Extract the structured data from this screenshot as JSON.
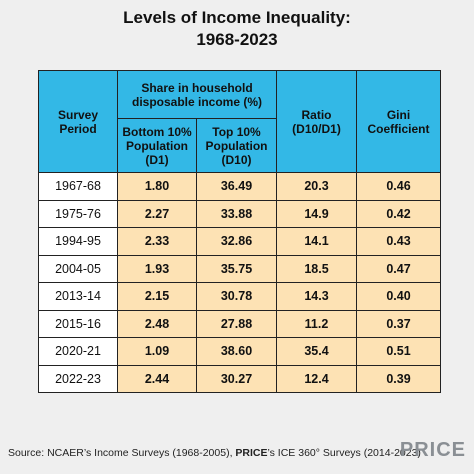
{
  "header": {
    "title": [
      "Levels of Income Inequality:",
      "1968-2023"
    ]
  },
  "table": {
    "headers": {
      "period": "Survey Period",
      "share": "Share in household disposable income (%)",
      "bottom": "Bottom 10% Population (D1)",
      "top": "Top 10% Population (D10)",
      "ratio": "Ratio (D10/D1)",
      "gini": "Gini Coefficient"
    },
    "rows": [
      [
        "1967-68",
        "1.80",
        "36.49",
        "20.3",
        "0.46"
      ],
      [
        "1975-76",
        "2.27",
        "33.88",
        "14.9",
        "0.42"
      ],
      [
        "1994-95",
        "2.33",
        "32.86",
        "14.1",
        "0.43"
      ],
      [
        "2004-05",
        "1.93",
        "35.75",
        "18.5",
        "0.47"
      ],
      [
        "2013-14",
        "2.15",
        "30.78",
        "14.3",
        "0.40"
      ],
      [
        "2015-16",
        "2.48",
        "27.88",
        "11.2",
        "0.37"
      ],
      [
        "2020-21",
        "1.09",
        "38.60",
        "35.4",
        "0.51"
      ],
      [
        "2022-23",
        "2.44",
        "30.27",
        "12.4",
        "0.39"
      ]
    ]
  },
  "footer": {
    "source": [
      "Source: NCAER’s Income Surveys (1968-2005), ",
      "PRICE",
      "’s ICE 360° Surveys (2014-2023)"
    ],
    "logo": "PRICE"
  }
}
